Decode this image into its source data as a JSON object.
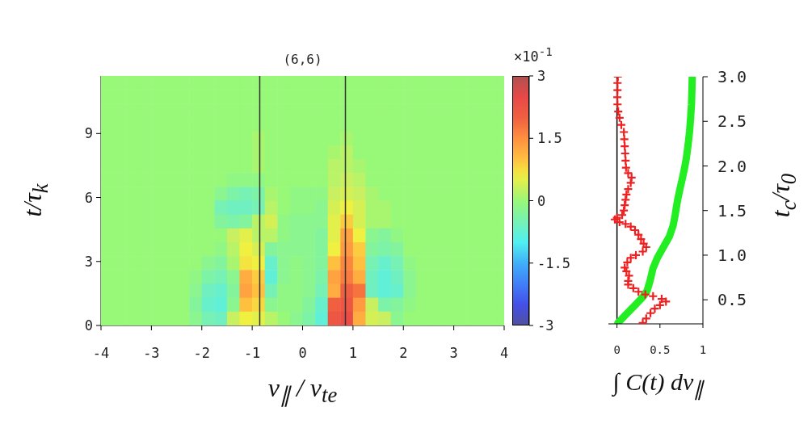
{
  "chart_data": [
    {
      "type": "heatmap",
      "title": "(6,6)",
      "xlabel": "v$_{∥}$ / v$_{te}$",
      "ylabel": "t/τ$_{k}$",
      "clabel": "×10$^{-1}$",
      "x": [
        -3.875,
        -3.625,
        -3.375,
        -3.125,
        -2.875,
        -2.625,
        -2.375,
        -2.125,
        -1.875,
        -1.625,
        -1.375,
        -1.125,
        -0.875,
        -0.625,
        -0.375,
        -0.125,
        0.125,
        0.375,
        0.625,
        0.875,
        1.125,
        1.375,
        1.625,
        1.875,
        2.125,
        2.375,
        2.625,
        2.875,
        3.125,
        3.375,
        3.625,
        3.875
      ],
      "y": [
        11.375,
        10.725,
        10.075,
        9.425,
        8.775,
        8.125,
        7.475,
        6.825,
        6.175,
        5.525,
        4.875,
        4.225,
        3.575,
        2.925,
        2.275,
        1.625,
        0.975,
        0.325
      ],
      "cells": [
        [
          0,
          0,
          0,
          0,
          0,
          0,
          0,
          0,
          0,
          0,
          0,
          0,
          0,
          0,
          0,
          0,
          0,
          0,
          0,
          0,
          0,
          0,
          0,
          0,
          0,
          0,
          0,
          0,
          0,
          0,
          0,
          0
        ],
        [
          0,
          0,
          0,
          0,
          0,
          0,
          0,
          0,
          0,
          0,
          0,
          0,
          0,
          0,
          0,
          0,
          0,
          0,
          0,
          0,
          0,
          0,
          0,
          0,
          0,
          0,
          0,
          0,
          0,
          0,
          0,
          0
        ],
        [
          0,
          0,
          0,
          0,
          0,
          0,
          0,
          0,
          0,
          0,
          0,
          0,
          0,
          0,
          0,
          0,
          0,
          0,
          0,
          0,
          0,
          0,
          0,
          0,
          0,
          0,
          0,
          0,
          0,
          0,
          0,
          0
        ],
        [
          0,
          0,
          0,
          0,
          0,
          0,
          0,
          0,
          0,
          0,
          0,
          0,
          0,
          0,
          0,
          0,
          0,
          0,
          0,
          0,
          0,
          0,
          0,
          0,
          0,
          0,
          0,
          0,
          0,
          0,
          0,
          0
        ],
        [
          0,
          0,
          0,
          0,
          0,
          0,
          0,
          0,
          0,
          0,
          0,
          0,
          0.1,
          0,
          0,
          0,
          0,
          0,
          0,
          0.1,
          0,
          0,
          0,
          0,
          0,
          0,
          0,
          0,
          0,
          0,
          0,
          0
        ],
        [
          0,
          0,
          0,
          0,
          0,
          0,
          0,
          0,
          0,
          0,
          0,
          0,
          0.1,
          0,
          0,
          0,
          0,
          0,
          0.1,
          0.2,
          0,
          0,
          0,
          0,
          0,
          0,
          0,
          0,
          0,
          0,
          0,
          0
        ],
        [
          0,
          0,
          0,
          0,
          0,
          0,
          0,
          0,
          0,
          0,
          0,
          0,
          0.1,
          0,
          0,
          0,
          0,
          0,
          0.2,
          0.2,
          0.1,
          0,
          0,
          0,
          0,
          0,
          0,
          0,
          0,
          0,
          0,
          0
        ],
        [
          0,
          0,
          0,
          0,
          0,
          0,
          0,
          0,
          0,
          0,
          -0.1,
          -0.1,
          -0.1,
          0,
          0,
          0,
          0,
          0,
          0.2,
          0.3,
          0.2,
          0,
          0,
          0,
          0,
          0,
          0,
          0,
          0,
          0,
          0,
          0
        ],
        [
          0,
          0,
          0,
          0,
          0,
          0,
          0,
          0,
          0,
          -0.2,
          -0.4,
          -0.5,
          -0.4,
          0.1,
          0,
          -0.1,
          -0.1,
          -0.1,
          0.3,
          0.4,
          0.3,
          0.1,
          0,
          0,
          0,
          0,
          0,
          0,
          0,
          0,
          0,
          0
        ],
        [
          0,
          0,
          0,
          0,
          0,
          0,
          0,
          0,
          0,
          -0.5,
          -0.6,
          -0.6,
          -0.5,
          0.2,
          0,
          -0.1,
          -0.1,
          -0.2,
          0.4,
          0.6,
          0.4,
          0.1,
          0.1,
          0,
          0,
          0,
          0,
          0,
          0,
          0,
          0,
          0
        ],
        [
          0,
          0,
          0,
          0,
          0,
          0,
          0,
          0,
          0,
          -0.3,
          -0.4,
          -0.3,
          0.2,
          0.4,
          -0.1,
          -0.2,
          -0.2,
          -0.2,
          0.5,
          0.9,
          0.4,
          0.1,
          0.1,
          0,
          0,
          0,
          0,
          0,
          0,
          0,
          0,
          0
        ],
        [
          0,
          0,
          0,
          0,
          0,
          0,
          0,
          0,
          0,
          0,
          0.3,
          0.5,
          0.2,
          0.2,
          -0.1,
          -0.2,
          -0.2,
          -0.3,
          0.5,
          1.3,
          0.6,
          -0.2,
          -0.3,
          -0.1,
          0,
          0,
          0,
          0,
          0,
          0,
          0,
          0
        ],
        [
          0,
          0,
          0,
          0,
          0,
          0,
          0,
          0,
          0,
          -0.1,
          0.2,
          0.6,
          0.4,
          -0.3,
          -0.2,
          -0.2,
          -0.2,
          -0.3,
          0.6,
          1.4,
          0.9,
          -0.3,
          -0.4,
          -0.3,
          0,
          0,
          0,
          0,
          0,
          0,
          0,
          0
        ],
        [
          0,
          0,
          0,
          0,
          0,
          0,
          0,
          0,
          -0.2,
          -0.3,
          0.1,
          0.7,
          0.6,
          -0.7,
          -0.2,
          -0.1,
          -0.2,
          -0.3,
          1.0,
          1.6,
          1.0,
          -0.5,
          -0.7,
          -0.5,
          -0.1,
          0,
          0,
          0,
          0,
          0,
          0,
          0
        ],
        [
          0,
          0,
          0,
          0,
          0,
          0,
          0,
          -0.1,
          -0.4,
          -0.5,
          -0.2,
          1.2,
          0.9,
          -0.8,
          -0.2,
          -0.1,
          -0.2,
          -0.4,
          1.3,
          1.7,
          1.2,
          -0.6,
          -0.8,
          -0.6,
          -0.2,
          0,
          0,
          0,
          0,
          0,
          0,
          0
        ],
        [
          0,
          0,
          0,
          0,
          0,
          0,
          0,
          -0.2,
          -0.6,
          -0.7,
          -0.3,
          1.3,
          1.0,
          -0.5,
          -0.1,
          -0.1,
          -0.2,
          -0.5,
          1.2,
          2.0,
          1.8,
          -0.6,
          -0.8,
          -0.7,
          -0.2,
          0,
          0,
          0,
          0,
          0,
          0,
          0
        ],
        [
          0,
          0,
          0,
          0,
          0,
          0,
          0,
          -0.3,
          -0.7,
          -0.8,
          -0.2,
          1.0,
          0.8,
          -0.2,
          -0.1,
          -0.1,
          -0.3,
          -0.7,
          2.0,
          2.2,
          1.4,
          0.3,
          -0.4,
          -0.3,
          -0.1,
          0,
          0,
          0,
          0,
          0,
          0,
          0
        ],
        [
          0,
          0,
          0,
          0,
          0,
          0,
          0,
          -0.2,
          -0.5,
          -0.6,
          0.3,
          0.6,
          0.5,
          0.2,
          0,
          -0.2,
          -0.4,
          -0.8,
          2.2,
          2.4,
          1.2,
          0.4,
          0.3,
          -0.2,
          0,
          0,
          0,
          0,
          0,
          0,
          0,
          0
        ]
      ],
      "xlim": [
        -4,
        4
      ],
      "xticks": [
        -4,
        -3,
        -2,
        -1,
        0,
        1,
        2,
        3,
        4
      ],
      "ylim": [
        0,
        11.7
      ],
      "yticks": [
        0,
        3,
        6,
        9
      ],
      "clim": [
        -3,
        3
      ],
      "cticks": [
        -3,
        -1.5,
        0,
        1.5,
        3
      ],
      "ref_lines": [
        {
          "axis": "x",
          "value": -0.85,
          "color": "#333333"
        },
        {
          "axis": "x",
          "value": 0.85,
          "color": "#333333"
        }
      ]
    },
    {
      "type": "line",
      "xlabel": "∫ C(t) dv$_{∥}$",
      "ylabel": "t$_{c}$/τ$_{0}$",
      "xlim": [
        -0.1,
        1.0
      ],
      "xticks": [
        0,
        0.5,
        1
      ],
      "ylim": [
        0.23,
        3.0
      ],
      "yticks": [
        0.5,
        {
          "value": 1,
          "label": "1.0"
        },
        1.5,
        {
          "value": 2,
          "label": "2.0"
        },
        2.5,
        {
          "value": 3,
          "label": "3.0"
        }
      ],
      "ref_lines": [
        {
          "axis": "x",
          "value": 0,
          "color": "#000000"
        }
      ],
      "series": [
        {
          "type": "line",
          "color": "#22ee22",
          "x": [
            0.876,
            0.872,
            0.867,
            0.857,
            0.845,
            0.828,
            0.806,
            0.785,
            0.763,
            0.735,
            0.708,
            0.69,
            0.677,
            0.653,
            0.61,
            0.54,
            0.47,
            0.418,
            0.387,
            0.35,
            0.3,
            0.19,
            0.1,
            0.01
          ],
          "values": [
            3.0,
            2.85,
            2.69,
            2.54,
            2.39,
            2.24,
            2.08,
            1.97,
            1.87,
            1.75,
            1.63,
            1.53,
            1.45,
            1.33,
            1.21,
            1.09,
            0.97,
            0.85,
            0.72,
            0.6,
            0.53,
            0.42,
            0.33,
            0.24
          ]
        },
        {
          "type": "scatter",
          "color": "#ee2020",
          "marker": "cross",
          "x": [
            0.01,
            0.006,
            0.006,
            0.004,
            0.006,
            0.015,
            0.03,
            0.05,
            0.08,
            0.085,
            0.09,
            0.095,
            0.1,
            0.105,
            0.13,
            0.17,
            0.16,
            0.13,
            0.11,
            0.1,
            0.09,
            0.08,
            0.06,
            0.0,
            -0.025,
            0.03,
            0.1,
            0.16,
            0.21,
            0.25,
            0.28,
            0.31,
            0.34,
            0.3,
            0.22,
            0.16,
            0.12,
            0.09,
            0.11,
            0.14,
            0.13,
            0.13,
            0.19,
            0.25,
            0.33,
            0.42,
            0.52,
            0.57,
            0.5,
            0.44,
            0.39,
            0.34,
            0.3
          ],
          "values": [
            3.0,
            2.93,
            2.85,
            2.77,
            2.69,
            2.61,
            2.54,
            2.46,
            2.38,
            2.3,
            2.22,
            2.14,
            2.06,
            1.98,
            1.92,
            1.87,
            1.81,
            1.74,
            1.68,
            1.62,
            1.56,
            1.5,
            1.45,
            1.42,
            1.4,
            1.37,
            1.35,
            1.32,
            1.28,
            1.23,
            1.18,
            1.13,
            1.09,
            1.04,
            1.0,
            0.97,
            0.92,
            0.86,
            0.82,
            0.77,
            0.71,
            0.67,
            0.63,
            0.59,
            0.56,
            0.54,
            0.51,
            0.48,
            0.44,
            0.4,
            0.35,
            0.29,
            0.24
          ]
        }
      ]
    }
  ]
}
